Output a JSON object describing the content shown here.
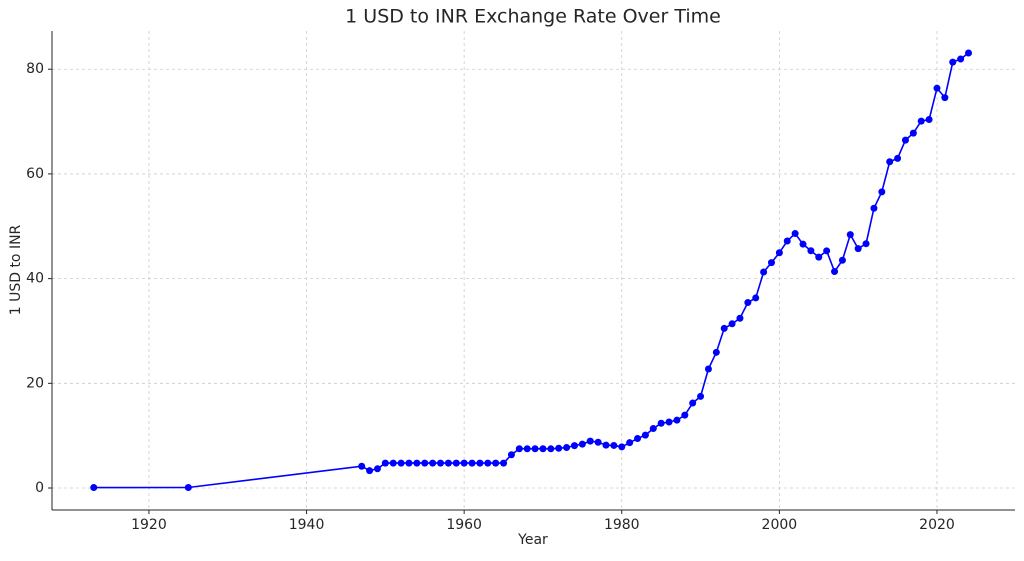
{
  "chart_data": {
    "type": "line",
    "title": "1 USD to INR Exchange Rate Over Time",
    "x_label": "Year",
    "y_label": "1 USD to INR",
    "x": [
      1913,
      1925,
      1947,
      1948,
      1949,
      1950,
      1951,
      1952,
      1953,
      1954,
      1955,
      1956,
      1957,
      1958,
      1959,
      1960,
      1961,
      1962,
      1963,
      1964,
      1965,
      1966,
      1967,
      1968,
      1969,
      1970,
      1971,
      1972,
      1973,
      1974,
      1975,
      1976,
      1977,
      1978,
      1979,
      1980,
      1981,
      1982,
      1983,
      1984,
      1985,
      1986,
      1987,
      1988,
      1989,
      1990,
      1991,
      1992,
      1993,
      1994,
      1995,
      1996,
      1997,
      1998,
      1999,
      2000,
      2001,
      2002,
      2003,
      2004,
      2005,
      2006,
      2007,
      2008,
      2009,
      2010,
      2011,
      2012,
      2013,
      2014,
      2015,
      2016,
      2017,
      2018,
      2019,
      2020,
      2021,
      2022,
      2023,
      2024
    ],
    "values": [
      0.09,
      0.1,
      4.16,
      3.31,
      3.67,
      4.76,
      4.76,
      4.76,
      4.76,
      4.76,
      4.76,
      4.76,
      4.76,
      4.76,
      4.76,
      4.76,
      4.76,
      4.76,
      4.76,
      4.76,
      4.76,
      6.36,
      7.5,
      7.5,
      7.5,
      7.5,
      7.49,
      7.59,
      7.74,
      8.1,
      8.38,
      8.96,
      8.74,
      8.19,
      8.13,
      7.86,
      8.66,
      9.46,
      10.1,
      11.36,
      12.37,
      12.61,
      12.96,
      13.92,
      16.23,
      17.5,
      22.74,
      25.92,
      30.49,
      31.37,
      32.43,
      35.43,
      36.31,
      41.26,
      43.06,
      44.94,
      47.19,
      48.61,
      46.58,
      45.32,
      44.1,
      45.31,
      41.35,
      43.51,
      48.41,
      45.73,
      46.67,
      53.44,
      56.57,
      62.33,
      62.97,
      66.46,
      67.79,
      70.09,
      70.39,
      76.38,
      74.57,
      81.35,
      81.94,
      83.1
    ],
    "color": "#0000ff",
    "xlim": [
      1907.7,
      2029.9
    ],
    "ylim": [
      -4.2,
      87.3
    ],
    "xticks": [
      1920,
      1940,
      1960,
      1980,
      2000,
      2020
    ],
    "yticks": [
      0,
      20,
      40,
      60,
      80
    ],
    "grid": true
  }
}
